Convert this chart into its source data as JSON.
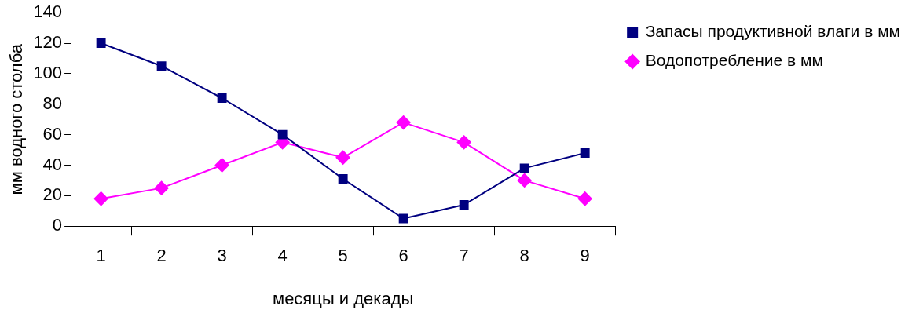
{
  "chart_data": {
    "type": "line",
    "xlabel": "месяцы и декады",
    "ylabel": "мм водного столба",
    "categories": [
      "1",
      "2",
      "3",
      "4",
      "5",
      "6",
      "7",
      "8",
      "9"
    ],
    "series": [
      {
        "name": "Запасы продуктивной влаги в мм",
        "color": "#000080",
        "marker": "square",
        "values": [
          120,
          105,
          84,
          60,
          31,
          5,
          14,
          38,
          48
        ]
      },
      {
        "name": "Водопотребление в мм",
        "color": "#ff00ff",
        "marker": "diamond",
        "values": [
          18,
          25,
          40,
          55,
          45,
          68,
          55,
          30,
          18
        ]
      }
    ],
    "ylim": [
      0,
      140
    ],
    "yticks": [
      0,
      20,
      40,
      60,
      80,
      100,
      120,
      140
    ],
    "grid": false,
    "legend": "top right",
    "line_style": "solid"
  }
}
